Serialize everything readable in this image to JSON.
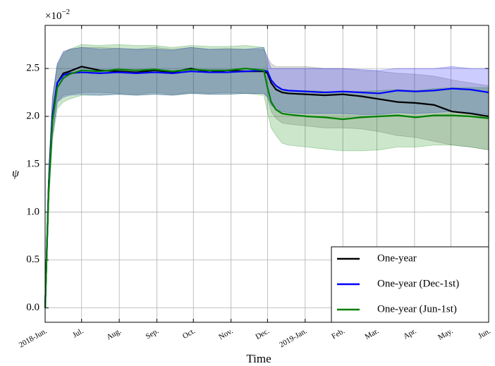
{
  "chart_data": {
    "type": "line",
    "xlabel": "Time",
    "ylabel": "ψ",
    "y_offset_text": {
      "base": "×10",
      "exponent": "−2"
    },
    "x": [
      0,
      3,
      6,
      10,
      15,
      20,
      30,
      45,
      60,
      75,
      90,
      105,
      120,
      135,
      150,
      165,
      180,
      183,
      186,
      190,
      195,
      200,
      215,
      230,
      245,
      260,
      275,
      290,
      305,
      320,
      335,
      350,
      365
    ],
    "series": [
      {
        "name": "One-year",
        "color": "#000000",
        "band_color": "#555555",
        "values": [
          0,
          1.3,
          2.0,
          2.35,
          2.45,
          2.47,
          2.52,
          2.48,
          2.47,
          2.46,
          2.48,
          2.46,
          2.5,
          2.46,
          2.48,
          2.47,
          2.47,
          2.45,
          2.35,
          2.28,
          2.25,
          2.24,
          2.23,
          2.22,
          2.23,
          2.21,
          2.18,
          2.15,
          2.14,
          2.12,
          2.05,
          2.03,
          2.0
        ],
        "upper": [
          0,
          1.45,
          2.2,
          2.55,
          2.68,
          2.7,
          2.72,
          2.72,
          2.71,
          2.7,
          2.72,
          2.7,
          2.72,
          2.7,
          2.71,
          2.7,
          2.7,
          2.62,
          2.55,
          2.52,
          2.52,
          2.52,
          2.52,
          2.5,
          2.5,
          2.48,
          2.47,
          2.45,
          2.44,
          2.42,
          2.38,
          2.35,
          2.32
        ],
        "lower": [
          0,
          1.15,
          1.8,
          2.15,
          2.22,
          2.23,
          2.25,
          2.25,
          2.24,
          2.23,
          2.25,
          2.23,
          2.25,
          2.24,
          2.25,
          2.24,
          2.24,
          2.2,
          2.05,
          1.98,
          1.93,
          1.92,
          1.9,
          1.88,
          1.88,
          1.87,
          1.84,
          1.8,
          1.78,
          1.74,
          1.7,
          1.68,
          1.65
        ]
      },
      {
        "name": "One-year (Dec-1st)",
        "color": "#0000ff",
        "band_color": "#0000ff",
        "values": [
          0,
          1.3,
          2.0,
          2.35,
          2.43,
          2.45,
          2.46,
          2.45,
          2.46,
          2.45,
          2.46,
          2.45,
          2.47,
          2.46,
          2.46,
          2.47,
          2.48,
          2.47,
          2.38,
          2.32,
          2.28,
          2.27,
          2.26,
          2.25,
          2.26,
          2.25,
          2.24,
          2.27,
          2.26,
          2.27,
          2.29,
          2.28,
          2.25
        ],
        "upper": [
          0,
          1.45,
          2.2,
          2.55,
          2.67,
          2.7,
          2.72,
          2.7,
          2.71,
          2.7,
          2.7,
          2.69,
          2.72,
          2.7,
          2.7,
          2.7,
          2.72,
          2.6,
          2.5,
          2.5,
          2.5,
          2.5,
          2.5,
          2.5,
          2.5,
          2.49,
          2.48,
          2.5,
          2.5,
          2.5,
          2.52,
          2.5,
          2.5
        ],
        "lower": [
          0,
          1.15,
          1.8,
          2.15,
          2.2,
          2.22,
          2.23,
          2.22,
          2.23,
          2.22,
          2.23,
          2.22,
          2.24,
          2.23,
          2.23,
          2.24,
          2.24,
          2.2,
          2.12,
          2.07,
          2.05,
          2.04,
          2.03,
          2.03,
          2.03,
          2.02,
          2.02,
          2.04,
          2.03,
          2.04,
          2.05,
          2.04,
          2.02
        ]
      },
      {
        "name": "One-year (Jun-1st)",
        "color": "#008000",
        "band_color": "#008000",
        "values": [
          0,
          1.25,
          1.95,
          2.3,
          2.4,
          2.44,
          2.48,
          2.47,
          2.49,
          2.48,
          2.49,
          2.47,
          2.49,
          2.48,
          2.48,
          2.5,
          2.48,
          2.3,
          2.15,
          2.07,
          2.03,
          2.02,
          2.0,
          1.99,
          1.97,
          1.99,
          2.0,
          2.01,
          1.99,
          2.01,
          2.01,
          2.0,
          1.98
        ],
        "upper": [
          0,
          1.4,
          2.15,
          2.52,
          2.65,
          2.7,
          2.75,
          2.74,
          2.75,
          2.74,
          2.74,
          2.72,
          2.74,
          2.73,
          2.73,
          2.74,
          2.72,
          2.5,
          2.35,
          2.3,
          2.28,
          2.27,
          2.27,
          2.26,
          2.25,
          2.26,
          2.27,
          2.28,
          2.27,
          2.29,
          2.3,
          2.3,
          2.3
        ],
        "lower": [
          0,
          1.1,
          1.75,
          2.08,
          2.15,
          2.18,
          2.22,
          2.22,
          2.23,
          2.22,
          2.23,
          2.22,
          2.24,
          2.23,
          2.23,
          2.24,
          2.22,
          2.05,
          1.88,
          1.8,
          1.72,
          1.7,
          1.68,
          1.66,
          1.64,
          1.64,
          1.65,
          1.68,
          1.68,
          1.7,
          1.7,
          1.68,
          1.65
        ]
      }
    ],
    "xlim": [
      0,
      365
    ],
    "xticks": [
      {
        "value": 0,
        "label": "2018-Jun."
      },
      {
        "value": 30,
        "label": "Jul."
      },
      {
        "value": 61,
        "label": "Aug."
      },
      {
        "value": 92,
        "label": "Sep."
      },
      {
        "value": 122,
        "label": "Oct."
      },
      {
        "value": 153,
        "label": "Nov."
      },
      {
        "value": 183,
        "label": "Dec."
      },
      {
        "value": 214,
        "label": "2019-Jan."
      },
      {
        "value": 245,
        "label": "Feb."
      },
      {
        "value": 273,
        "label": "Mar."
      },
      {
        "value": 304,
        "label": "Apr."
      },
      {
        "value": 334,
        "label": "May."
      },
      {
        "value": 365,
        "label": "Jun."
      }
    ],
    "ylim": [
      -0.15,
      2.95
    ],
    "yticks": [
      {
        "value": 0,
        "label": "0.0"
      },
      0.5,
      {
        "value": 1,
        "label": "1.0"
      },
      1.5,
      {
        "value": 2,
        "label": "2.0"
      },
      2.5
    ],
    "grid": true,
    "legend": "lower right"
  }
}
